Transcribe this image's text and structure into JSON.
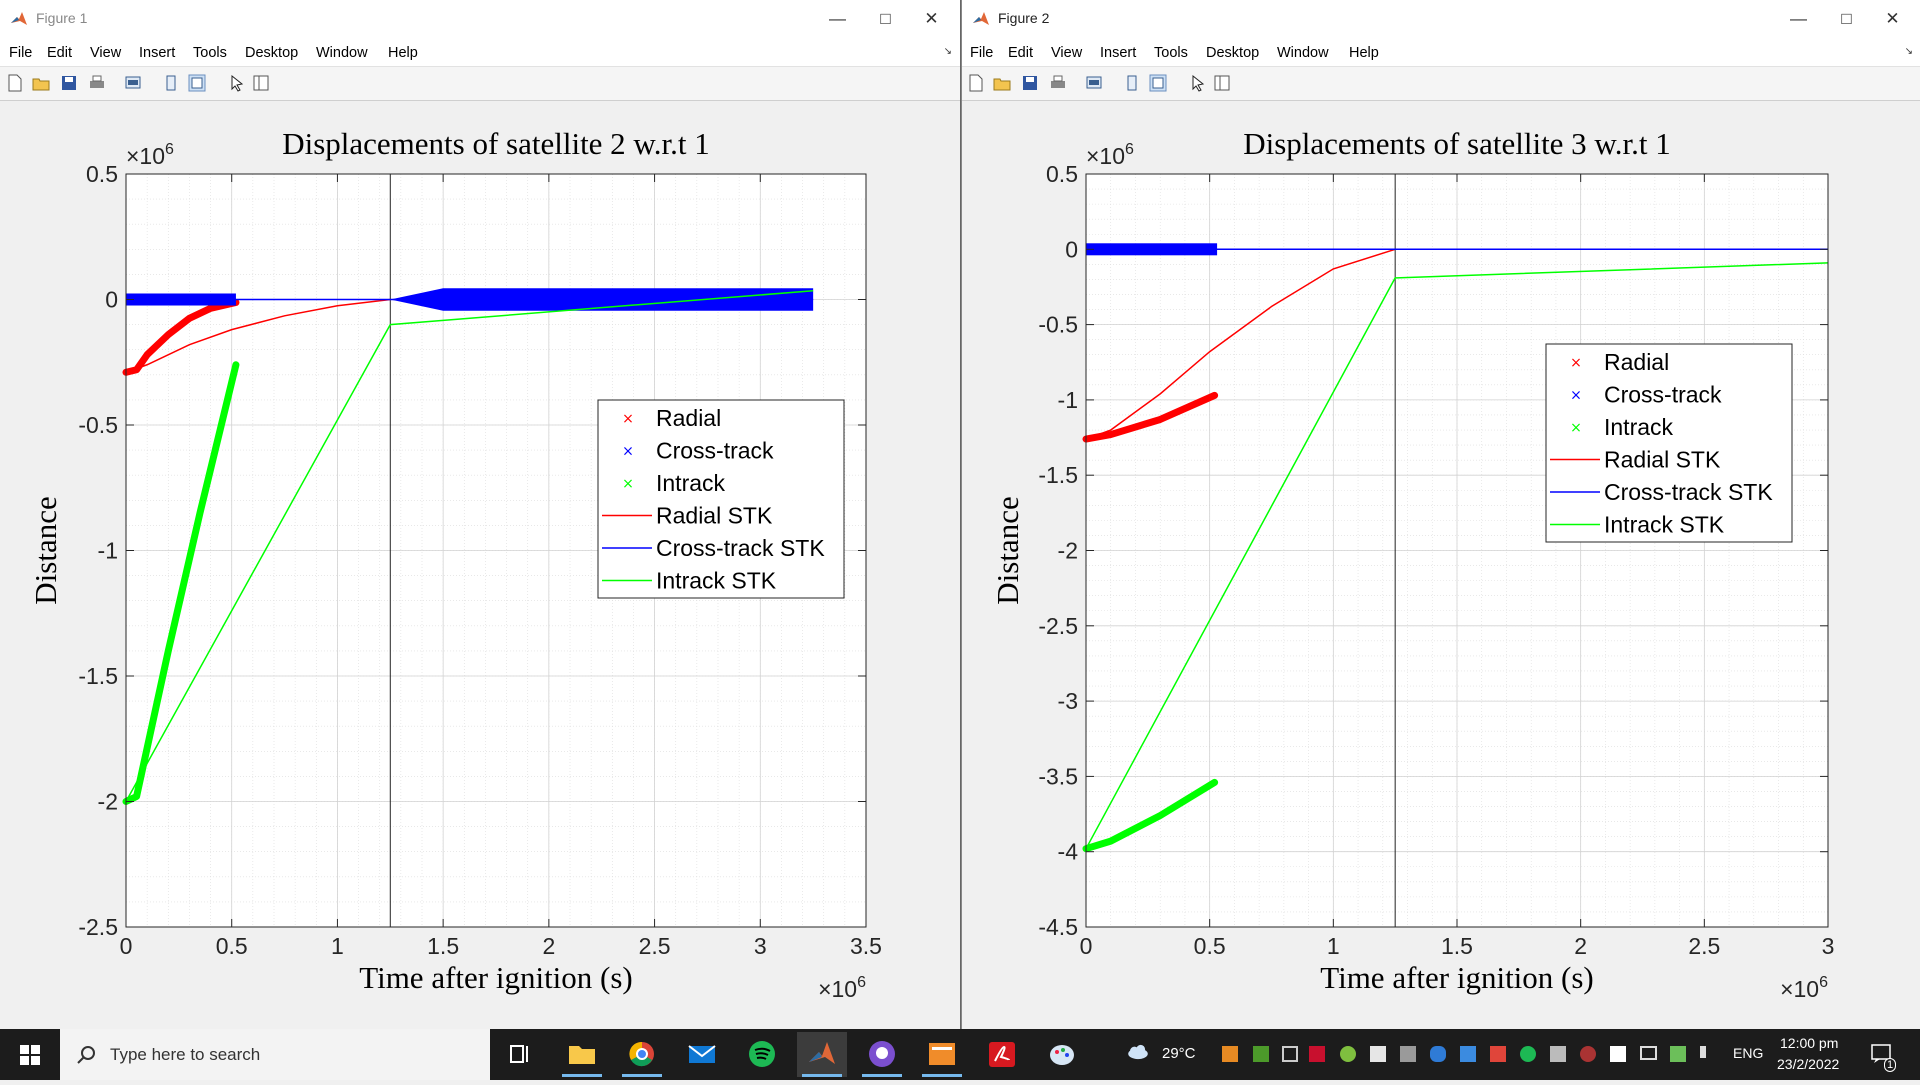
{
  "windows": [
    {
      "title": "Figure 1",
      "menu": [
        "File",
        "Edit",
        "View",
        "Insert",
        "Tools",
        "Desktop",
        "Window",
        "Help"
      ],
      "axes": {
        "title": "Displacements of satellite 2 w.r.t 1",
        "ylabel": "Distance",
        "xlabel": "Time after ignition (s)",
        "x_exponent": "×10",
        "x_exponent_power": "6",
        "y_exponent": "×10",
        "y_exponent_power": "6",
        "x_ticks": [
          "0",
          "0.5",
          "1",
          "1.5",
          "2",
          "2.5",
          "3",
          "3.5"
        ],
        "y_ticks": [
          "0.5",
          "0",
          "-0.5",
          "-1",
          "-1.5",
          "-2",
          "-2.5"
        ],
        "legend": [
          "Radial",
          "Cross-track",
          "Intrack",
          "Radial STK",
          "Cross-track STK",
          "Intrack STK"
        ]
      }
    },
    {
      "title": "Figure 2",
      "menu": [
        "File",
        "Edit",
        "View",
        "Insert",
        "Tools",
        "Desktop",
        "Window",
        "Help"
      ],
      "axes": {
        "title": "Displacements of satellite 3 w.r.t 1",
        "ylabel": "Distance",
        "xlabel": "Time after ignition (s)",
        "x_exponent": "×10",
        "x_exponent_power": "6",
        "y_exponent": "×10",
        "y_exponent_power": "6",
        "x_ticks": [
          "0",
          "0.5",
          "1",
          "1.5",
          "2",
          "2.5",
          "3"
        ],
        "y_ticks": [
          "0.5",
          "0",
          "-0.5",
          "-1",
          "-1.5",
          "-2",
          "-2.5",
          "-3",
          "-3.5",
          "-4",
          "-4.5"
        ],
        "legend": [
          "Radial",
          "Cross-track",
          "Intrack",
          "Radial STK",
          "Cross-track STK",
          "Intrack STK"
        ]
      }
    }
  ],
  "chart_data": [
    {
      "type": "line",
      "title": "Displacements of satellite 2 w.r.t 1",
      "xlabel": "Time after ignition (s)",
      "ylabel": "Distance",
      "xlim": [
        0,
        3500000
      ],
      "ylim": [
        -2500000,
        500000
      ],
      "grid": true,
      "vline_x": 1250000,
      "legend_position": "right-center",
      "series": [
        {
          "name": "Radial",
          "marker": "x",
          "color": "#ff0000",
          "points": [
            [
              0,
              -290000
            ],
            [
              50000,
              -280000
            ],
            [
              100000,
              -220000
            ],
            [
              200000,
              -140000
            ],
            [
              300000,
              -75000
            ],
            [
              400000,
              -35000
            ],
            [
              520000,
              -12000
            ]
          ]
        },
        {
          "name": "Cross-track",
          "marker": "x",
          "color": "#0000ff",
          "band": [
            -12000,
            12000
          ],
          "points": [
            [
              0,
              0
            ],
            [
              520000,
              0
            ]
          ]
        },
        {
          "name": "Intrack",
          "marker": "x",
          "color": "#00ff00",
          "points": [
            [
              0,
              -2000000
            ],
            [
              50000,
              -1980000
            ],
            [
              200000,
              -1400000
            ],
            [
              350000,
              -850000
            ],
            [
              520000,
              -260000
            ]
          ]
        },
        {
          "name": "Radial STK",
          "color": "#ff0000",
          "points": [
            [
              0,
              -290000
            ],
            [
              100000,
              -260000
            ],
            [
              300000,
              -180000
            ],
            [
              500000,
              -120000
            ],
            [
              750000,
              -65000
            ],
            [
              1000000,
              -25000
            ],
            [
              1250000,
              0
            ]
          ]
        },
        {
          "name": "Cross-track STK",
          "color": "#0000ff",
          "points": [
            [
              0,
              0
            ],
            [
              3250000,
              0
            ]
          ],
          "band_segments": [
            [
              1250000,
              0
            ],
            [
              1500000,
              45000
            ],
            [
              3250000,
              45000
            ]
          ]
        },
        {
          "name": "Intrack STK",
          "color": "#00ff00",
          "points": [
            [
              0,
              -2000000
            ],
            [
              1250000,
              -100000
            ],
            [
              3250000,
              35000
            ]
          ]
        }
      ]
    },
    {
      "type": "line",
      "title": "Displacements of satellite 3 w.r.t 1",
      "xlabel": "Time after ignition (s)",
      "ylabel": "Distance",
      "xlim": [
        0,
        3000000
      ],
      "ylim": [
        -4500000,
        500000
      ],
      "grid": true,
      "vline_x": 1250000,
      "legend_position": "top-right",
      "series": [
        {
          "name": "Radial",
          "marker": "x",
          "color": "#ff0000",
          "points": [
            [
              0,
              -1260000
            ],
            [
              100000,
              -1230000
            ],
            [
              300000,
              -1130000
            ],
            [
              520000,
              -970000
            ]
          ]
        },
        {
          "name": "Cross-track",
          "marker": "x",
          "color": "#0000ff",
          "band": [
            -20000,
            20000
          ],
          "points": [
            [
              0,
              0
            ],
            [
              530000,
              0
            ]
          ]
        },
        {
          "name": "Intrack",
          "marker": "x",
          "color": "#00ff00",
          "points": [
            [
              0,
              -3980000
            ],
            [
              100000,
              -3930000
            ],
            [
              300000,
              -3760000
            ],
            [
              520000,
              -3540000
            ]
          ]
        },
        {
          "name": "Radial STK",
          "color": "#ff0000",
          "points": [
            [
              0,
              -1260000
            ],
            [
              100000,
              -1200000
            ],
            [
              300000,
              -960000
            ],
            [
              500000,
              -680000
            ],
            [
              750000,
              -380000
            ],
            [
              1000000,
              -130000
            ],
            [
              1250000,
              0
            ]
          ]
        },
        {
          "name": "Cross-track STK",
          "color": "#0000ff",
          "points": [
            [
              0,
              0
            ],
            [
              3000000,
              0
            ]
          ]
        },
        {
          "name": "Intrack STK",
          "color": "#00ff00",
          "points": [
            [
              0,
              -3980000
            ],
            [
              1250000,
              -190000
            ],
            [
              3000000,
              -90000
            ]
          ]
        }
      ]
    }
  ],
  "taskbar": {
    "search_placeholder": "Type here to search",
    "weather": "29°C",
    "language": "ENG",
    "time": "12:00 pm",
    "date": "23/2/2022",
    "notification_count": "1"
  }
}
